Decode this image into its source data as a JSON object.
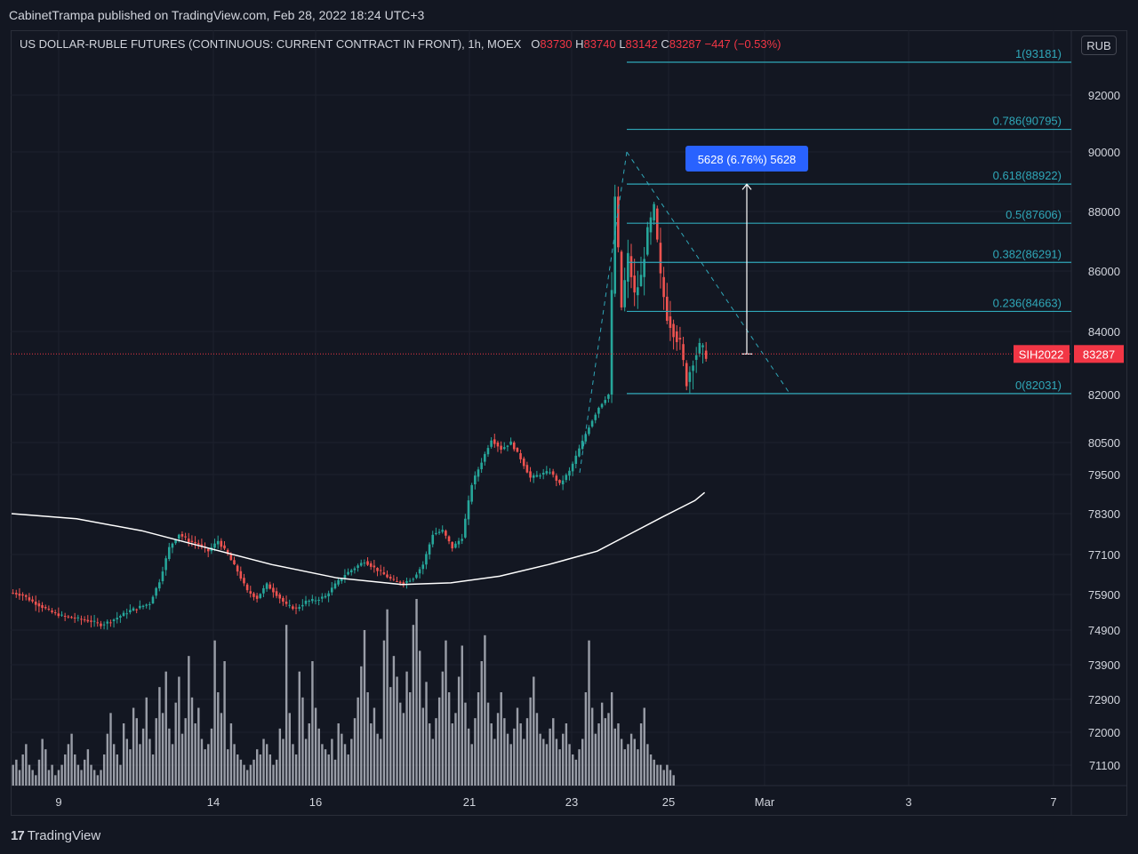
{
  "header": {
    "published_text": "CabinetTrampa published on TradingView.com, Feb 28, 2022 18:24 UTC+3"
  },
  "legend": {
    "symbol_title": "US DOLLAR-RUBLE FUTURES (CONTINUOUS: CURRENT CONTRACT IN FRONT), 1h, MOEX",
    "o_label": "O",
    "o_value": "83730",
    "h_label": "H",
    "h_value": "83740",
    "l_label": "L",
    "l_value": "83142",
    "c_label": "C",
    "c_value": "83287",
    "change": "−447 (−0.53%)"
  },
  "currency_button": "RUB",
  "footer": {
    "logo_mark": "17",
    "brand": "TradingView"
  },
  "colors": {
    "background": "#131722",
    "grid": "#1e222d",
    "up": "#26a69a",
    "down": "#ef5350",
    "fib": "#2fa7b8",
    "ma": "#ffffff",
    "volume": "#b2b5be",
    "price_tag": "#f23645",
    "measure_label": "#2962ff"
  },
  "chart_data": {
    "type": "candlestick",
    "y_scale": "log",
    "x_tick_labels": [
      "9",
      "14",
      "16",
      "21",
      "23",
      "25",
      "Mar",
      "3",
      "7"
    ],
    "y_tick_labels": [
      92000,
      90000,
      88000,
      86000,
      84000,
      82000,
      80500,
      79500,
      78300,
      77100,
      75900,
      74900,
      73900,
      72900,
      72000,
      71100
    ],
    "current_price": {
      "symbol": "SIH2022",
      "value": 83287
    },
    "fibonacci": [
      {
        "label": "1(93181)",
        "ratio": 1,
        "price": 93181
      },
      {
        "label": "0.786(90795)",
        "ratio": 0.786,
        "price": 90795
      },
      {
        "label": "0.618(88922)",
        "ratio": 0.618,
        "price": 88922
      },
      {
        "label": "0.5(87606)",
        "ratio": 0.5,
        "price": 87606
      },
      {
        "label": "0.382(86291)",
        "ratio": 0.382,
        "price": 86291
      },
      {
        "label": "0.236(84663)",
        "ratio": 0.236,
        "price": 84663
      },
      {
        "label": "0(82031)",
        "ratio": 0,
        "price": 82031
      }
    ],
    "measure": {
      "label": "5628 (6.76%) 5628",
      "from": 83287,
      "to": 88915
    },
    "trend_lines": [
      {
        "from": [
          "Feb 23",
          79300
        ],
        "to": [
          "Feb 24",
          89900
        ]
      },
      {
        "from": [
          "Feb 24",
          89900
        ],
        "to": [
          "Feb 28",
          82000
        ]
      }
    ],
    "price_path": [
      [
        0,
        75950
      ],
      [
        3,
        75880
      ],
      [
        6,
        75700
      ],
      [
        9,
        75550
      ],
      [
        12,
        75400
      ],
      [
        15,
        75300
      ],
      [
        18,
        75250
      ],
      [
        21,
        75200
      ],
      [
        24,
        75150
      ],
      [
        27,
        75050
      ],
      [
        30,
        75150
      ],
      [
        33,
        75300
      ],
      [
        36,
        75450
      ],
      [
        39,
        75550
      ],
      [
        42,
        75650
      ],
      [
        45,
        76300
      ],
      [
        48,
        77300
      ],
      [
        51,
        77700
      ],
      [
        54,
        77500
      ],
      [
        57,
        77400
      ],
      [
        60,
        77200
      ],
      [
        63,
        77500
      ],
      [
        66,
        77100
      ],
      [
        69,
        76600
      ],
      [
        72,
        76000
      ],
      [
        75,
        75800
      ],
      [
        78,
        76200
      ],
      [
        81,
        75900
      ],
      [
        84,
        75600
      ],
      [
        87,
        75500
      ],
      [
        90,
        75700
      ],
      [
        93,
        75750
      ],
      [
        96,
        75850
      ],
      [
        99,
        76200
      ],
      [
        102,
        76500
      ],
      [
        105,
        76700
      ],
      [
        108,
        76900
      ],
      [
        111,
        76700
      ],
      [
        114,
        76500
      ],
      [
        117,
        76300
      ],
      [
        120,
        76250
      ],
      [
        123,
        76400
      ],
      [
        126,
        76800
      ],
      [
        129,
        77700
      ],
      [
        132,
        77800
      ],
      [
        135,
        77300
      ],
      [
        138,
        77600
      ],
      [
        141,
        79200
      ],
      [
        144,
        79900
      ],
      [
        147,
        80600
      ],
      [
        150,
        80300
      ],
      [
        153,
        80500
      ],
      [
        156,
        80000
      ],
      [
        159,
        79400
      ],
      [
        162,
        79500
      ],
      [
        165,
        79600
      ],
      [
        168,
        79200
      ],
      [
        171,
        79600
      ],
      [
        174,
        80300
      ],
      [
        177,
        81000
      ],
      [
        180,
        81600
      ],
      [
        183,
        82000
      ],
      [
        185,
        88500
      ],
      [
        187,
        84800
      ],
      [
        189,
        86500
      ],
      [
        191,
        85200
      ],
      [
        193,
        85800
      ],
      [
        195,
        87300
      ],
      [
        197,
        88100
      ],
      [
        199,
        85800
      ],
      [
        201,
        84500
      ],
      [
        203,
        84000
      ],
      [
        205,
        83600
      ],
      [
        207,
        82400
      ],
      [
        209,
        83100
      ],
      [
        211,
        83500
      ],
      [
        213,
        83287
      ]
    ],
    "moving_average": [
      [
        0,
        78300
      ],
      [
        20,
        78150
      ],
      [
        40,
        77800
      ],
      [
        60,
        77300
      ],
      [
        80,
        76800
      ],
      [
        100,
        76400
      ],
      [
        120,
        76200
      ],
      [
        135,
        76250
      ],
      [
        150,
        76450
      ],
      [
        165,
        76800
      ],
      [
        180,
        77200
      ],
      [
        190,
        77700
      ],
      [
        200,
        78200
      ],
      [
        210,
        78700
      ],
      [
        213,
        78950
      ]
    ],
    "volume": [
      4,
      5,
      3,
      6,
      8,
      4,
      3,
      2,
      5,
      9,
      7,
      3,
      4,
      2,
      3,
      4,
      6,
      8,
      10,
      6,
      4,
      3,
      5,
      7,
      4,
      3,
      2,
      3,
      6,
      10,
      14,
      8,
      6,
      4,
      12,
      9,
      7,
      15,
      13,
      8,
      11,
      17,
      9,
      6,
      13,
      19,
      14,
      22,
      11,
      8,
      16,
      21,
      10,
      13,
      25,
      17,
      12,
      15,
      9,
      7,
      8,
      11,
      28,
      18,
      14,
      24,
      7,
      12,
      8,
      6,
      5,
      4,
      3,
      4,
      5,
      7,
      6,
      9,
      8,
      6,
      4,
      5,
      11,
      9,
      31,
      14,
      8,
      6,
      22,
      17,
      9,
      12,
      24,
      15,
      11,
      8,
      7,
      6,
      9,
      5,
      12,
      10,
      8,
      6,
      9,
      13,
      17,
      23,
      30,
      18,
      12,
      15,
      10,
      9,
      28,
      34,
      19,
      25,
      21,
      16,
      14,
      22,
      18,
      31,
      36,
      26,
      15,
      20,
      12,
      9,
      13,
      17,
      22,
      28,
      18,
      12,
      14,
      21,
      27,
      16,
      11,
      8,
      13,
      18,
      24,
      29,
      16,
      12,
      9,
      14,
      18,
      13,
      10,
      8,
      11,
      15,
      12,
      9,
      13,
      17,
      21,
      14,
      10,
      9,
      8,
      11,
      13,
      9,
      7,
      10,
      12,
      8,
      6,
      5,
      7,
      9,
      18,
      28,
      15,
      10,
      12,
      16,
      13,
      14,
      18,
      11,
      12,
      9,
      7,
      8,
      10,
      9,
      7,
      12,
      15,
      8,
      6,
      5,
      4,
      4,
      3,
      4,
      3,
      2
    ]
  }
}
